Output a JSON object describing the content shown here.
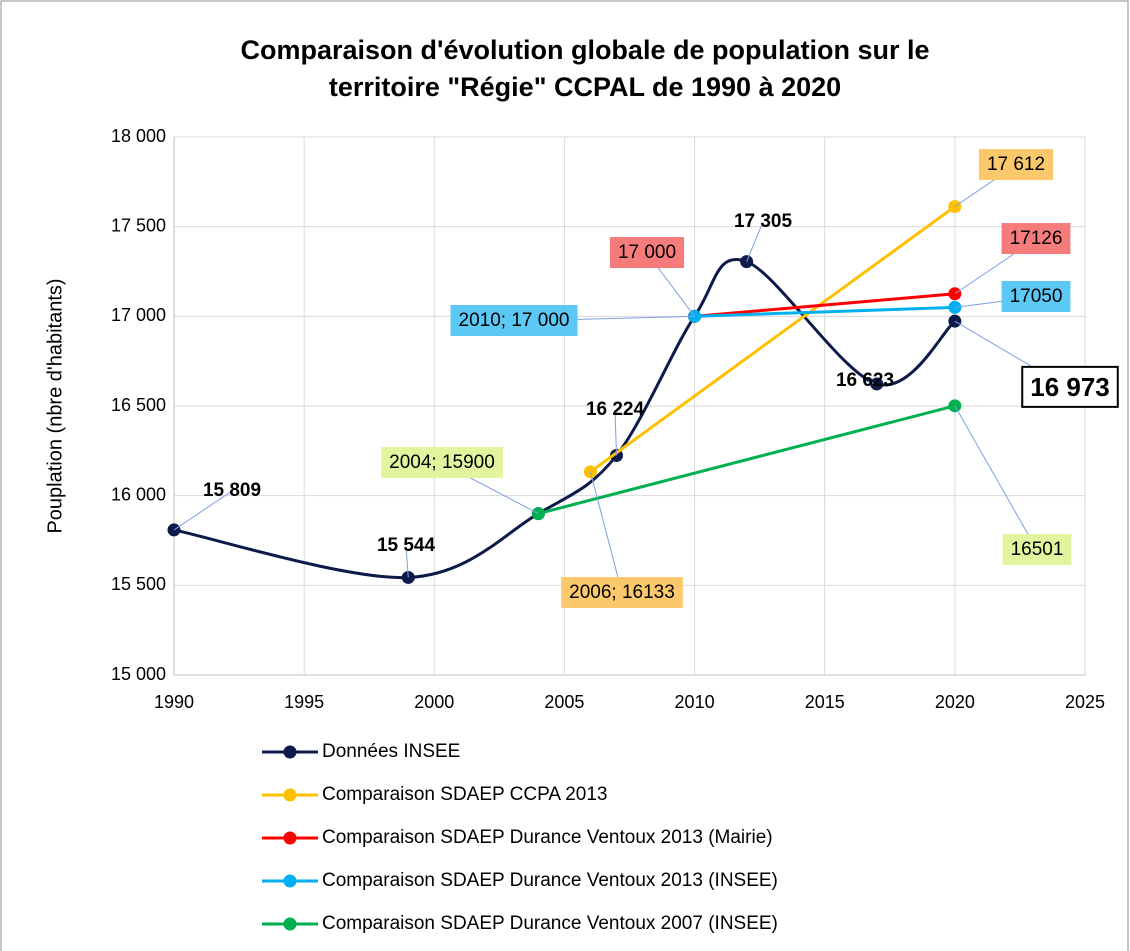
{
  "chart_data": {
    "type": "line",
    "title": [
      "Comparaison d'évolution globale de population sur le",
      "territoire \"Régie\" CCPAL de 1990 à 2020"
    ],
    "y_label": "Pouplation (nbre d'habitants)",
    "xlim": [
      1990,
      2025
    ],
    "xticks": [
      1990,
      1995,
      2000,
      2005,
      2010,
      2015,
      2020,
      2025
    ],
    "ylim": [
      15000,
      18000
    ],
    "yticks": [
      {
        "value": 15000,
        "label": "15 000"
      },
      {
        "value": 15500,
        "label": "15 500"
      },
      {
        "value": 16000,
        "label": "16 000"
      },
      {
        "value": 16500,
        "label": "16 500"
      },
      {
        "value": 17000,
        "label": "17 000"
      },
      {
        "value": 17500,
        "label": "17 500"
      },
      {
        "value": 18000,
        "label": "18 000"
      }
    ],
    "grid": true,
    "legend": "bottom",
    "series": [
      {
        "name": "Données INSEE",
        "color": "#0d1a4a",
        "smooth": true,
        "x": [
          1990,
          1999,
          2004,
          2007,
          2010,
          2012,
          2017,
          2020
        ],
        "values": [
          15809,
          15544,
          15900,
          16224,
          17000,
          17305,
          16623,
          16973
        ],
        "value_labels": [
          "15 809",
          "15 544",
          null,
          "16 224",
          null,
          "17 305",
          "16 623",
          "16 973"
        ]
      },
      {
        "name": "Comparaison SDAEP CCPA 2013",
        "color": "#ffc000",
        "x": [
          2006,
          2020
        ],
        "values": [
          16133,
          17612
        ],
        "value_labels": [
          "2006; 16133",
          "17 612"
        ]
      },
      {
        "name": "Comparaison SDAEP Durance Ventoux 2013 (Mairie)",
        "color": "#ff0000",
        "x": [
          2010,
          2020
        ],
        "values": [
          17000,
          17126
        ],
        "value_labels": [
          "17 000",
          "17126"
        ]
      },
      {
        "name": "Comparaison SDAEP Durance Ventoux 2013 (INSEE)",
        "color": "#00b0f0",
        "x": [
          2010,
          2020
        ],
        "values": [
          17000,
          17050
        ],
        "value_labels": [
          "2010; 17 000",
          "17050"
        ]
      },
      {
        "name": "Comparaison SDAEP Durance Ventoux 2007 (INSEE)",
        "color": "#00b050",
        "x": [
          2004,
          2020
        ],
        "values": [
          15900,
          16501
        ],
        "value_labels": [
          "2004; 15900",
          "16501"
        ]
      }
    ]
  }
}
